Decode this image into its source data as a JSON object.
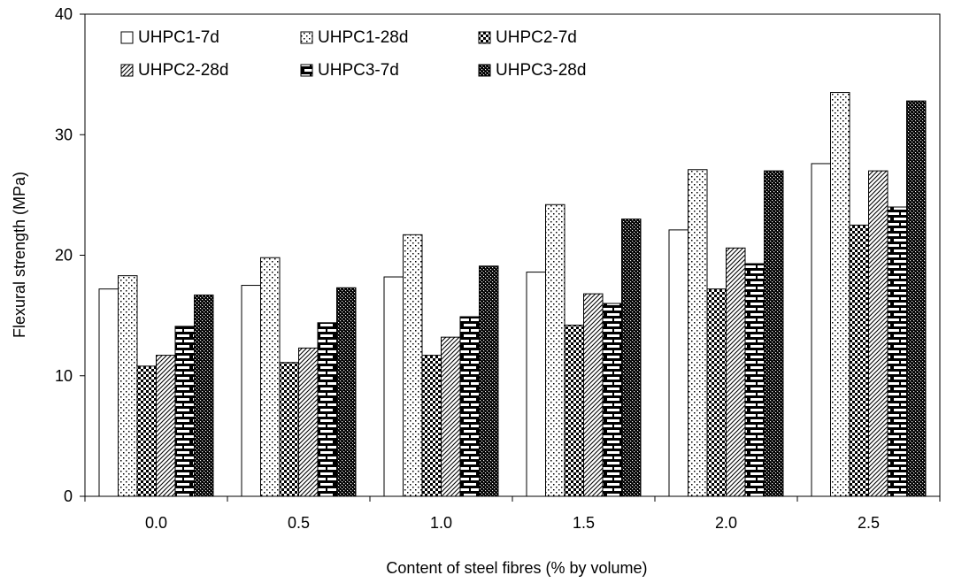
{
  "chart_data": {
    "type": "bar",
    "xlabel": "Content of steel fibres (% by volume)",
    "ylabel": "Flexural strength (MPa)",
    "ylim": [
      0,
      40
    ],
    "yticks": [
      "0",
      "10",
      "20",
      "30",
      "40"
    ],
    "grid": false,
    "legend_position": "top-left",
    "categories": [
      "0.0",
      "0.5",
      "1.0",
      "1.5",
      "2.0",
      "2.5"
    ],
    "series": [
      {
        "name": "UHPC1-7d",
        "pattern": "none",
        "values": [
          17.2,
          17.5,
          18.2,
          18.6,
          22.1,
          27.6
        ]
      },
      {
        "name": "UHPC1-28d",
        "pattern": "dots",
        "values": [
          18.3,
          19.8,
          21.7,
          24.2,
          27.1,
          33.5
        ]
      },
      {
        "name": "UHPC2-7d",
        "pattern": "checker",
        "values": [
          10.8,
          11.1,
          11.7,
          14.2,
          17.2,
          22.5
        ]
      },
      {
        "name": "UHPC2-28d",
        "pattern": "diagonal",
        "values": [
          11.7,
          12.3,
          13.2,
          16.8,
          20.6,
          27.0
        ]
      },
      {
        "name": "UHPC3-7d",
        "pattern": "brick",
        "values": [
          14.1,
          14.4,
          14.9,
          16.0,
          19.3,
          24.0
        ]
      },
      {
        "name": "UHPC3-28d",
        "pattern": "dense-checker",
        "values": [
          16.7,
          17.3,
          19.1,
          23.0,
          27.0,
          32.8
        ]
      }
    ]
  }
}
